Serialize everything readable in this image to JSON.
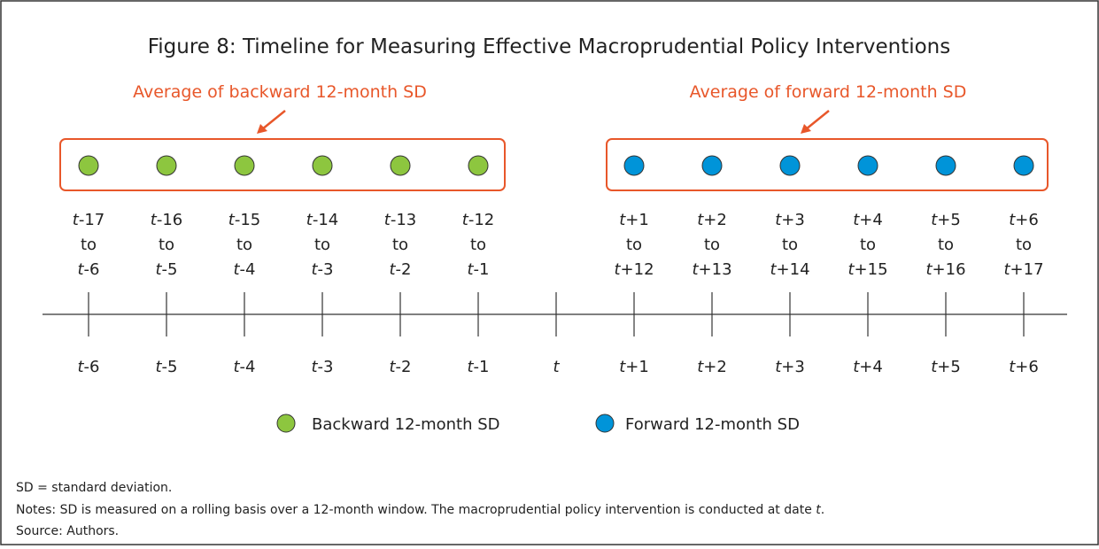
{
  "title": "Figure 8: Timeline for Measuring Effective Macroprudential Policy Interventions",
  "annotations": {
    "backward": "Average of backward 12-month SD",
    "forward": "Average of forward 12-month SD"
  },
  "backward_windows": [
    [
      "t-17",
      "to",
      "t-6"
    ],
    [
      "t-16",
      "to",
      "t-5"
    ],
    [
      "t-15",
      "to",
      "t-4"
    ],
    [
      "t-14",
      "to",
      "t-3"
    ],
    [
      "t-13",
      "to",
      "t-2"
    ],
    [
      "t-12",
      "to",
      "t-1"
    ]
  ],
  "forward_windows": [
    [
      "t+1",
      "to",
      "t+12"
    ],
    [
      "t+2",
      "to",
      "t+13"
    ],
    [
      "t+3",
      "to",
      "t+14"
    ],
    [
      "t+4",
      "to",
      "t+15"
    ],
    [
      "t+5",
      "to",
      "t+16"
    ],
    [
      "t+6",
      "to",
      "t+17"
    ]
  ],
  "dates": [
    "t-6",
    "t-5",
    "t-4",
    "t-3",
    "t-2",
    "t-1",
    "t",
    "t+1",
    "t+2",
    "t+3",
    "t+4",
    "t+5",
    "t+6"
  ],
  "legend": {
    "backward": "Backward 12-month SD",
    "forward": "Forward 12-month SD"
  },
  "notes": [
    "SD = standard deviation.",
    "Notes: SD is measured on a rolling basis over a 12-month window. The macroprudential policy intervention is conducted at date t.",
    "Source: Authors."
  ]
}
